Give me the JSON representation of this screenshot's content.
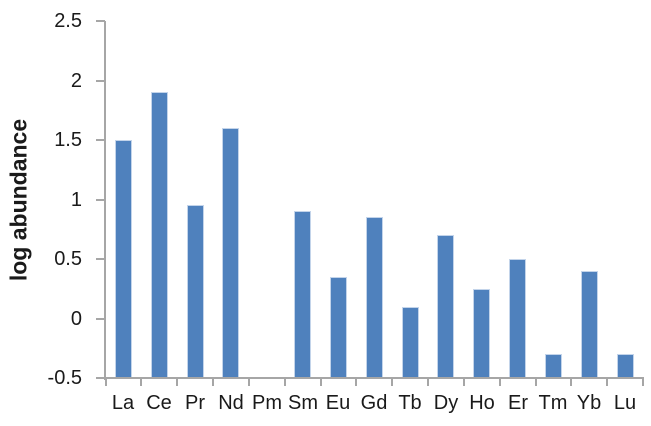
{
  "chart_data": {
    "type": "bar",
    "title": "",
    "ylabel": "log abundance",
    "xlabel": "",
    "categories": [
      "La",
      "Ce",
      "Pr",
      "Nd",
      "Pm",
      "Sm",
      "Eu",
      "Gd",
      "Tb",
      "Dy",
      "Ho",
      "Er",
      "Tm",
      "Yb",
      "Lu"
    ],
    "values": [
      1.5,
      1.9,
      0.95,
      1.6,
      null,
      0.9,
      0.35,
      0.85,
      0.1,
      0.7,
      0.25,
      0.5,
      -0.3,
      0.4,
      -0.3
    ],
    "ylim": [
      -0.5,
      2.5
    ],
    "yticks": [
      -0.5,
      0,
      0.5,
      1,
      1.5,
      2,
      2.5
    ],
    "ytick_labels": [
      "-0.5",
      "0",
      "0.5",
      "1",
      "1.5",
      "2",
      "2.5"
    ],
    "grid": false,
    "legend": false,
    "bar_color": "#4f81bd",
    "bar_border_color": "#c3d4ea",
    "axis_color": "#a6a6a6",
    "text_color": "#1a1a1a"
  }
}
